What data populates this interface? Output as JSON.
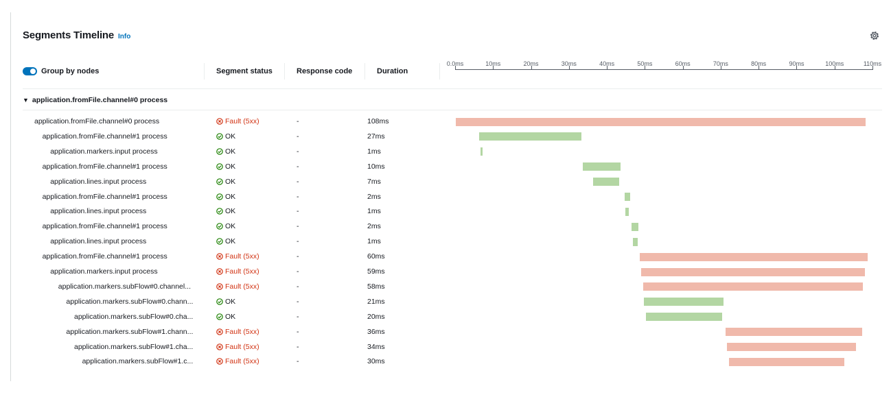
{
  "header": {
    "title": "Segments Timeline",
    "info_label": "Info",
    "settings_icon": "gear-icon"
  },
  "columns": {
    "group_toggle_label": "Group by nodes",
    "group_toggle_on": true,
    "status": "Segment status",
    "response": "Response code",
    "duration": "Duration"
  },
  "timeline": {
    "unit": "ms",
    "start_ms": 0,
    "end_ms": 110,
    "ticks": [
      "0.0ms",
      "10ms",
      "20ms",
      "30ms",
      "40ms",
      "50ms",
      "60ms",
      "70ms",
      "80ms",
      "90ms",
      "100ms",
      "110ms"
    ]
  },
  "group": {
    "label": "application.fromFile.channel#0 process",
    "expanded": true
  },
  "status_labels": {
    "fault": "Fault (5xx)",
    "ok": "OK"
  },
  "colors": {
    "fault_text": "#d13212",
    "fault_bar": "#f0b9ab",
    "ok_bar": "#b3d6a3",
    "accent": "#0073bb"
  },
  "segments": [
    {
      "name": "application.fromFile.channel#0 process",
      "depth": 0,
      "status": "fault",
      "response": "-",
      "duration": "108ms",
      "start_ms": 0.2,
      "dur_ms": 108
    },
    {
      "name": "application.fromFile.channel#1 process",
      "depth": 1,
      "status": "ok",
      "response": "-",
      "duration": "27ms",
      "start_ms": 6.3,
      "dur_ms": 27
    },
    {
      "name": "application.markers.input process",
      "depth": 2,
      "status": "ok",
      "response": "-",
      "duration": "1ms",
      "start_ms": 6.6,
      "dur_ms": 0.6
    },
    {
      "name": "application.fromFile.channel#1 process",
      "depth": 1,
      "status": "ok",
      "response": "-",
      "duration": "10ms",
      "start_ms": 33.6,
      "dur_ms": 10
    },
    {
      "name": "application.lines.input process",
      "depth": 2,
      "status": "ok",
      "response": "-",
      "duration": "7ms",
      "start_ms": 36.3,
      "dur_ms": 7
    },
    {
      "name": "application.fromFile.channel#1 process",
      "depth": 1,
      "status": "ok",
      "response": "-",
      "duration": "2ms",
      "start_ms": 44.6,
      "dur_ms": 1.6
    },
    {
      "name": "application.lines.input process",
      "depth": 2,
      "status": "ok",
      "response": "-",
      "duration": "1ms",
      "start_ms": 44.8,
      "dur_ms": 0.9
    },
    {
      "name": "application.fromFile.channel#1 process",
      "depth": 1,
      "status": "ok",
      "response": "-",
      "duration": "2ms",
      "start_ms": 46.5,
      "dur_ms": 1.8
    },
    {
      "name": "application.lines.input process",
      "depth": 2,
      "status": "ok",
      "response": "-",
      "duration": "1ms",
      "start_ms": 46.8,
      "dur_ms": 1.3
    },
    {
      "name": "application.fromFile.channel#1 process",
      "depth": 1,
      "status": "fault",
      "response": "-",
      "duration": "60ms",
      "start_ms": 48.7,
      "dur_ms": 60
    },
    {
      "name": "application.markers.input process",
      "depth": 2,
      "status": "fault",
      "response": "-",
      "duration": "59ms",
      "start_ms": 49.1,
      "dur_ms": 59
    },
    {
      "name": "application.markers.subFlow#0.channel...",
      "depth": 3,
      "status": "fault",
      "response": "-",
      "duration": "58ms",
      "start_ms": 49.5,
      "dur_ms": 58
    },
    {
      "name": "application.markers.subFlow#0.chann...",
      "depth": 4,
      "status": "ok",
      "response": "-",
      "duration": "21ms",
      "start_ms": 49.7,
      "dur_ms": 21
    },
    {
      "name": "application.markers.subFlow#0.cha...",
      "depth": 5,
      "status": "ok",
      "response": "-",
      "duration": "20ms",
      "start_ms": 50.3,
      "dur_ms": 20
    },
    {
      "name": "application.markers.subFlow#1.chann...",
      "depth": 4,
      "status": "fault",
      "response": "-",
      "duration": "36ms",
      "start_ms": 71.3,
      "dur_ms": 36
    },
    {
      "name": "application.markers.subFlow#1.cha...",
      "depth": 5,
      "status": "fault",
      "response": "-",
      "duration": "34ms",
      "start_ms": 71.7,
      "dur_ms": 34
    },
    {
      "name": "application.markers.subFlow#1.c...",
      "depth": 6,
      "status": "fault",
      "response": "-",
      "duration": "30ms",
      "start_ms": 72.1,
      "dur_ms": 30.5
    }
  ]
}
